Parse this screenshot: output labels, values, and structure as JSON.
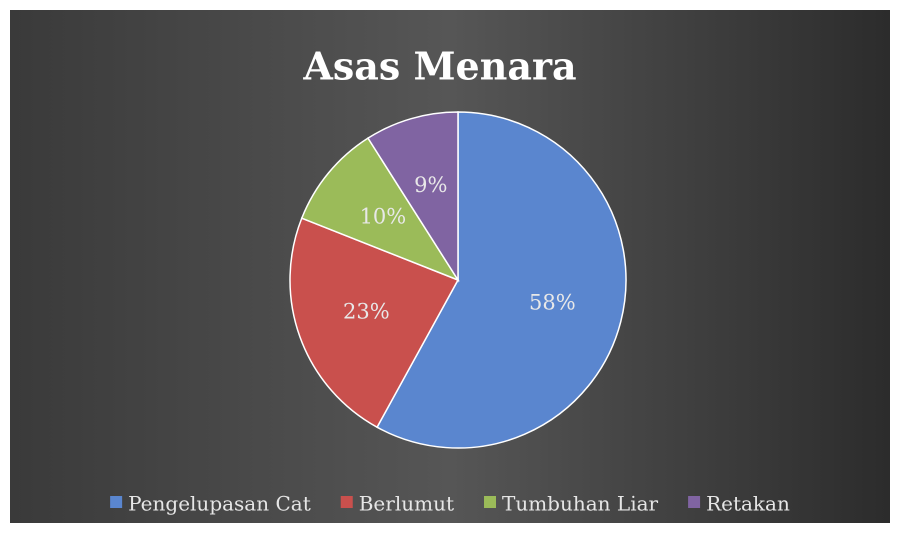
{
  "chart_data": {
    "type": "pie",
    "title": "Asas Menara",
    "categories": [
      "Pengelupasan Cat",
      "Berlumut",
      "Tumbuhan Liar",
      "Retakan"
    ],
    "values": [
      58,
      23,
      10,
      9
    ],
    "value_labels": [
      "58%",
      "23%",
      "10%",
      "9%"
    ],
    "colors": [
      "#5a86cf",
      "#c9504d",
      "#9bbb59",
      "#8064a2"
    ],
    "legend": "bottom"
  }
}
